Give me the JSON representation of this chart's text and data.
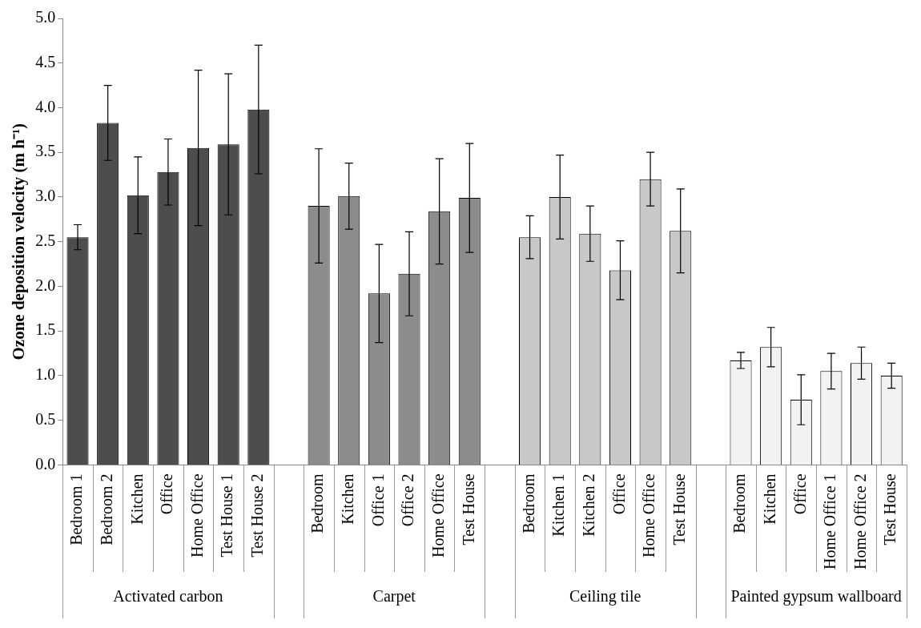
{
  "chart_data": {
    "type": "bar",
    "ylabel": "Ozone deposition velocity (m h⁻¹)",
    "categories": [
      "Bedroom 1",
      "Bedroom 2",
      "Kitchen",
      "Office",
      "Home Office",
      "Test House 1",
      "Test House 2",
      null,
      "Bedroom",
      "Kitchen",
      "Office 1",
      "Office 2",
      "Home Office",
      "Test House",
      null,
      "Bedroom",
      "Kitchen 1",
      "Kitchen 2",
      "Office",
      "Home Office",
      "Test House",
      null,
      "Bedroom",
      "Kitchen",
      "Office",
      "Home Office 1",
      "Home Office 2",
      "Test House"
    ],
    "series": [
      {
        "name": "Activated carbon",
        "color": "#4d4d4d",
        "values": [
          2.55,
          3.83,
          3.02,
          3.28,
          3.55,
          3.59,
          3.98,
          null,
          null,
          null,
          null,
          null,
          null,
          null,
          null,
          null,
          null,
          null,
          null,
          null,
          null,
          null,
          null,
          null,
          null,
          null,
          null,
          null
        ],
        "errors": [
          0.14,
          0.42,
          0.43,
          0.37,
          0.87,
          0.79,
          0.72,
          null,
          null,
          null,
          null,
          null,
          null,
          null,
          null,
          null,
          null,
          null,
          null,
          null,
          null,
          null,
          null,
          null,
          null,
          null,
          null,
          null
        ]
      },
      {
        "name": "Carpet",
        "color": "#8c8c8c",
        "values": [
          null,
          null,
          null,
          null,
          null,
          null,
          null,
          null,
          2.9,
          3.01,
          1.92,
          2.14,
          2.84,
          2.99,
          null,
          null,
          null,
          null,
          null,
          null,
          null,
          null,
          null,
          null,
          null,
          null,
          null,
          null
        ],
        "errors": [
          null,
          null,
          null,
          null,
          null,
          null,
          null,
          null,
          0.64,
          0.37,
          0.55,
          0.47,
          0.59,
          0.61,
          null,
          null,
          null,
          null,
          null,
          null,
          null,
          null,
          null,
          null,
          null,
          null,
          null,
          null
        ]
      },
      {
        "name": "Ceiling tile",
        "color": "#c8c8c8",
        "values": [
          null,
          null,
          null,
          null,
          null,
          null,
          null,
          null,
          null,
          null,
          null,
          null,
          null,
          null,
          null,
          2.55,
          3.0,
          2.59,
          2.18,
          3.2,
          2.62,
          null,
          null,
          null,
          null,
          null,
          null,
          null
        ],
        "errors": [
          null,
          null,
          null,
          null,
          null,
          null,
          null,
          null,
          null,
          null,
          null,
          null,
          null,
          null,
          null,
          0.24,
          0.47,
          0.31,
          0.33,
          0.3,
          0.47,
          null,
          null,
          null,
          null,
          null,
          null,
          null
        ]
      },
      {
        "name": "Painted gypsum wallboard",
        "color": "#f2f2f2",
        "values": [
          null,
          null,
          null,
          null,
          null,
          null,
          null,
          null,
          null,
          null,
          null,
          null,
          null,
          null,
          null,
          null,
          null,
          null,
          null,
          null,
          null,
          null,
          1.17,
          1.32,
          0.73,
          1.05,
          1.14,
          1.0
        ],
        "errors": [
          null,
          null,
          null,
          null,
          null,
          null,
          null,
          null,
          null,
          null,
          null,
          null,
          null,
          null,
          null,
          null,
          null,
          null,
          null,
          null,
          null,
          null,
          0.09,
          0.22,
          0.28,
          0.2,
          0.18,
          0.14
        ]
      }
    ],
    "ylim": [
      0,
      5
    ],
    "yticks": [
      {
        "value": 0,
        "label": "0.0"
      },
      0.5,
      {
        "value": 1,
        "label": "1.0"
      },
      1.5,
      {
        "value": 2,
        "label": "2.0"
      },
      2.5,
      {
        "value": 3,
        "label": "3.0"
      },
      3.5,
      {
        "value": 4,
        "label": "4.0"
      },
      4.5,
      {
        "value": 5,
        "label": "5.0"
      }
    ]
  }
}
